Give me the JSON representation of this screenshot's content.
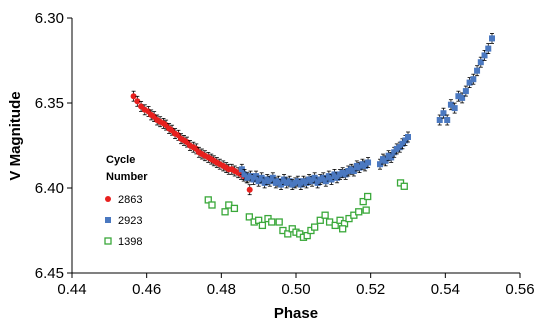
{
  "chart_data": {
    "type": "scatter",
    "xlabel": "Phase",
    "ylabel": "V Magnitude",
    "xlim": [
      0.44,
      0.56
    ],
    "ylim": [
      6.3,
      6.45
    ],
    "y_inverted": true,
    "x_ticks": [
      "0.44",
      "0.46",
      "0.48",
      "0.50",
      "0.52",
      "0.54",
      "0.56"
    ],
    "y_ticks": [
      "6.30",
      "6.35",
      "6.40",
      "6.45"
    ],
    "grid": false,
    "legend_placement": "left",
    "legend_title_lines": [
      "Cycle",
      "Number"
    ],
    "series": [
      {
        "name": "2863",
        "color": "#e8201e",
        "marker": "circle",
        "error_bars": true,
        "points": [
          [
            0.4565,
            6.346
          ],
          [
            0.4575,
            6.349
          ],
          [
            0.4585,
            6.352
          ],
          [
            0.4595,
            6.354
          ],
          [
            0.4605,
            6.355
          ],
          [
            0.4612,
            6.357
          ],
          [
            0.462,
            6.358
          ],
          [
            0.4628,
            6.36
          ],
          [
            0.4636,
            6.361
          ],
          [
            0.4645,
            6.362
          ],
          [
            0.4652,
            6.363
          ],
          [
            0.466,
            6.365
          ],
          [
            0.4668,
            6.366
          ],
          [
            0.4676,
            6.368
          ],
          [
            0.4685,
            6.369
          ],
          [
            0.4692,
            6.371
          ],
          [
            0.47,
            6.372
          ],
          [
            0.4708,
            6.373
          ],
          [
            0.4716,
            6.375
          ],
          [
            0.4725,
            6.376
          ],
          [
            0.4733,
            6.377
          ],
          [
            0.474,
            6.379
          ],
          [
            0.4748,
            6.38
          ],
          [
            0.4756,
            6.381
          ],
          [
            0.4765,
            6.382
          ],
          [
            0.4773,
            6.383
          ],
          [
            0.478,
            6.384
          ],
          [
            0.4788,
            6.385
          ],
          [
            0.4796,
            6.386
          ],
          [
            0.4805,
            6.387
          ],
          [
            0.4813,
            6.388
          ],
          [
            0.482,
            6.389
          ],
          [
            0.4828,
            6.389
          ],
          [
            0.4836,
            6.39
          ],
          [
            0.4845,
            6.391
          ],
          [
            0.4853,
            6.392
          ],
          [
            0.486,
            6.393
          ],
          [
            0.4868,
            6.394
          ],
          [
            0.4876,
            6.401
          ]
        ]
      },
      {
        "name": "2923",
        "color": "#4a78c0",
        "marker": "square",
        "error_bars": true,
        "points": [
          [
            0.4855,
            6.389
          ],
          [
            0.4862,
            6.392
          ],
          [
            0.487,
            6.394
          ],
          [
            0.4878,
            6.393
          ],
          [
            0.4886,
            6.395
          ],
          [
            0.4893,
            6.393
          ],
          [
            0.49,
            6.396
          ],
          [
            0.4908,
            6.394
          ],
          [
            0.4916,
            6.397
          ],
          [
            0.4923,
            6.395
          ],
          [
            0.493,
            6.396
          ],
          [
            0.4938,
            6.394
          ],
          [
            0.4946,
            6.397
          ],
          [
            0.4953,
            6.396
          ],
          [
            0.496,
            6.398
          ],
          [
            0.4968,
            6.395
          ],
          [
            0.4975,
            6.397
          ],
          [
            0.4983,
            6.396
          ],
          [
            0.499,
            6.398
          ],
          [
            0.4998,
            6.397
          ],
          [
            0.5005,
            6.396
          ],
          [
            0.5013,
            6.398
          ],
          [
            0.502,
            6.396
          ],
          [
            0.5028,
            6.397
          ],
          [
            0.5035,
            6.395
          ],
          [
            0.5043,
            6.396
          ],
          [
            0.505,
            6.394
          ],
          [
            0.5058,
            6.397
          ],
          [
            0.5065,
            6.395
          ],
          [
            0.5073,
            6.394
          ],
          [
            0.508,
            6.396
          ],
          [
            0.5088,
            6.393
          ],
          [
            0.5095,
            6.395
          ],
          [
            0.5103,
            6.392
          ],
          [
            0.511,
            6.394
          ],
          [
            0.5118,
            6.392
          ],
          [
            0.5125,
            6.391
          ],
          [
            0.5133,
            6.392
          ],
          [
            0.514,
            6.39
          ],
          [
            0.5148,
            6.389
          ],
          [
            0.5155,
            6.39
          ],
          [
            0.5163,
            6.387
          ],
          [
            0.517,
            6.388
          ],
          [
            0.5178,
            6.386
          ],
          [
            0.5185,
            6.387
          ],
          [
            0.5193,
            6.385
          ],
          [
            0.5225,
            6.386
          ],
          [
            0.5233,
            6.383
          ],
          [
            0.524,
            6.384
          ],
          [
            0.5248,
            6.381
          ],
          [
            0.5255,
            6.382
          ],
          [
            0.5263,
            6.379
          ],
          [
            0.527,
            6.377
          ],
          [
            0.5278,
            6.376
          ],
          [
            0.5285,
            6.374
          ],
          [
            0.5293,
            6.372
          ],
          [
            0.53,
            6.37
          ],
          [
            0.5385,
            6.36
          ],
          [
            0.5395,
            6.356
          ],
          [
            0.5405,
            6.36
          ],
          [
            0.5415,
            6.351
          ],
          [
            0.5425,
            6.353
          ],
          [
            0.5435,
            6.346
          ],
          [
            0.5445,
            6.347
          ],
          [
            0.5455,
            6.343
          ],
          [
            0.5465,
            6.338
          ],
          [
            0.5475,
            6.336
          ],
          [
            0.5485,
            6.331
          ],
          [
            0.5495,
            6.326
          ],
          [
            0.5505,
            6.322
          ],
          [
            0.5515,
            6.318
          ],
          [
            0.5525,
            6.312
          ]
        ]
      },
      {
        "name": "1398",
        "color": "#3aa83a",
        "marker": "open-square",
        "error_bars": false,
        "points": [
          [
            0.4765,
            6.407
          ],
          [
            0.4775,
            6.41
          ],
          [
            0.481,
            6.414
          ],
          [
            0.482,
            6.41
          ],
          [
            0.4835,
            6.412
          ],
          [
            0.4875,
            6.417
          ],
          [
            0.4888,
            6.42
          ],
          [
            0.49,
            6.419
          ],
          [
            0.491,
            6.422
          ],
          [
            0.4925,
            6.418
          ],
          [
            0.4935,
            6.42
          ],
          [
            0.4955,
            6.42
          ],
          [
            0.4965,
            6.425
          ],
          [
            0.4978,
            6.427
          ],
          [
            0.499,
            6.424
          ],
          [
            0.5,
            6.426
          ],
          [
            0.501,
            6.427
          ],
          [
            0.502,
            6.429
          ],
          [
            0.503,
            6.428
          ],
          [
            0.504,
            6.425
          ],
          [
            0.505,
            6.423
          ],
          [
            0.5065,
            6.419
          ],
          [
            0.5078,
            6.416
          ],
          [
            0.509,
            6.42
          ],
          [
            0.5105,
            6.422
          ],
          [
            0.5118,
            6.419
          ],
          [
            0.513,
            6.421
          ],
          [
            0.5142,
            6.418
          ],
          [
            0.5155,
            6.416
          ],
          [
            0.5168,
            6.414
          ],
          [
            0.518,
            6.408
          ],
          [
            0.5192,
            6.405
          ],
          [
            0.528,
            6.397
          ],
          [
            0.529,
            6.399
          ],
          [
            0.5188,
            6.413
          ],
          [
            0.5125,
            6.424
          ]
        ]
      }
    ]
  }
}
